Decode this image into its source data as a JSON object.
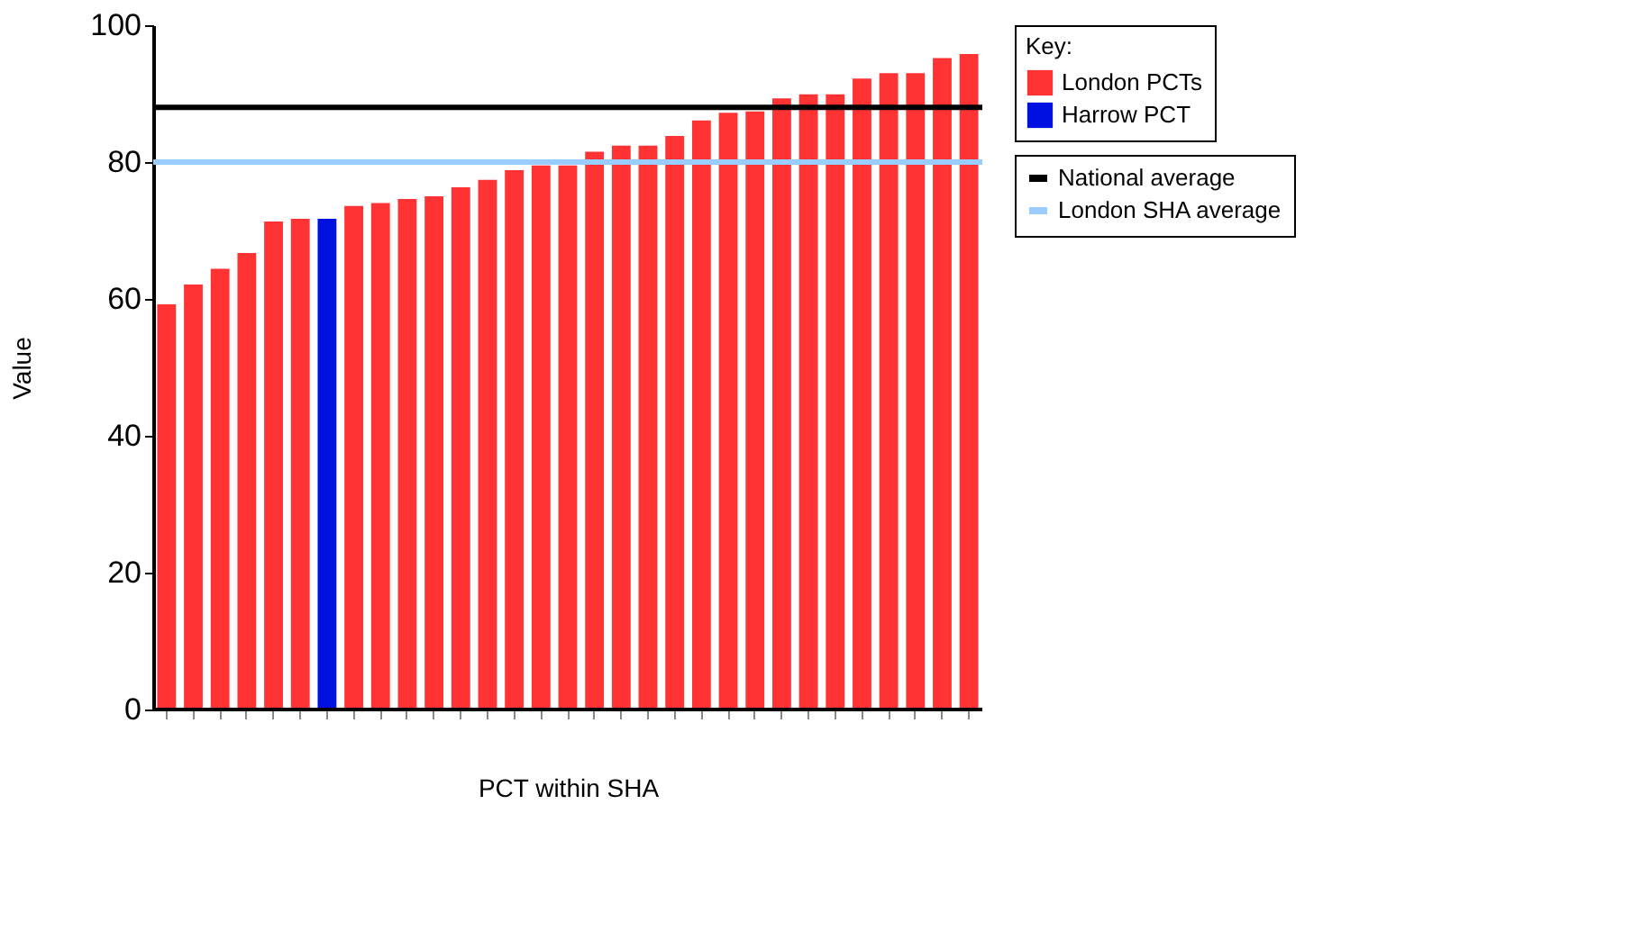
{
  "chart_data": {
    "type": "bar",
    "xlabel": "PCT within SHA",
    "ylabel": "Value",
    "legend_title": "Key:",
    "categories": [
      null,
      null,
      null,
      null,
      null,
      null,
      null,
      null,
      null,
      null,
      null,
      null,
      null,
      null,
      null,
      null,
      null,
      null,
      null,
      null,
      null,
      null,
      null,
      null,
      null,
      null,
      null,
      null,
      null,
      null,
      null
    ],
    "series": [
      {
        "name": "London PCTs",
        "color": "#ff3333",
        "values": [
          59.2,
          62.1,
          64.4,
          66.7,
          71.3,
          71.7,
          null,
          73.6,
          74.0,
          74.6,
          75.0,
          76.3,
          77.4,
          78.8,
          79.5,
          79.5,
          81.5,
          82.4,
          82.4,
          83.8,
          86.1,
          87.2,
          87.4,
          89.3,
          89.9,
          89.9,
          92.2,
          93.0,
          93.0,
          95.2,
          95.8
        ]
      },
      {
        "name": "Harrow PCT",
        "color": "#0010e0",
        "values": [
          null,
          null,
          null,
          null,
          null,
          null,
          71.7,
          null,
          null,
          null,
          null,
          null,
          null,
          null,
          null,
          null,
          null,
          null,
          null,
          null,
          null,
          null,
          null,
          null,
          null,
          null,
          null,
          null,
          null,
          null,
          null
        ]
      }
    ],
    "ref_lines": [
      {
        "axis": "y",
        "value": 88,
        "label": "National average",
        "color": "#000000"
      },
      {
        "axis": "y",
        "value": 80,
        "label": "London SHA average",
        "color": "#99ccff"
      }
    ],
    "ylim": [
      0,
      100
    ],
    "yticks": [
      0,
      20,
      40,
      60,
      80,
      100
    ],
    "grid": false,
    "legend": "right"
  }
}
